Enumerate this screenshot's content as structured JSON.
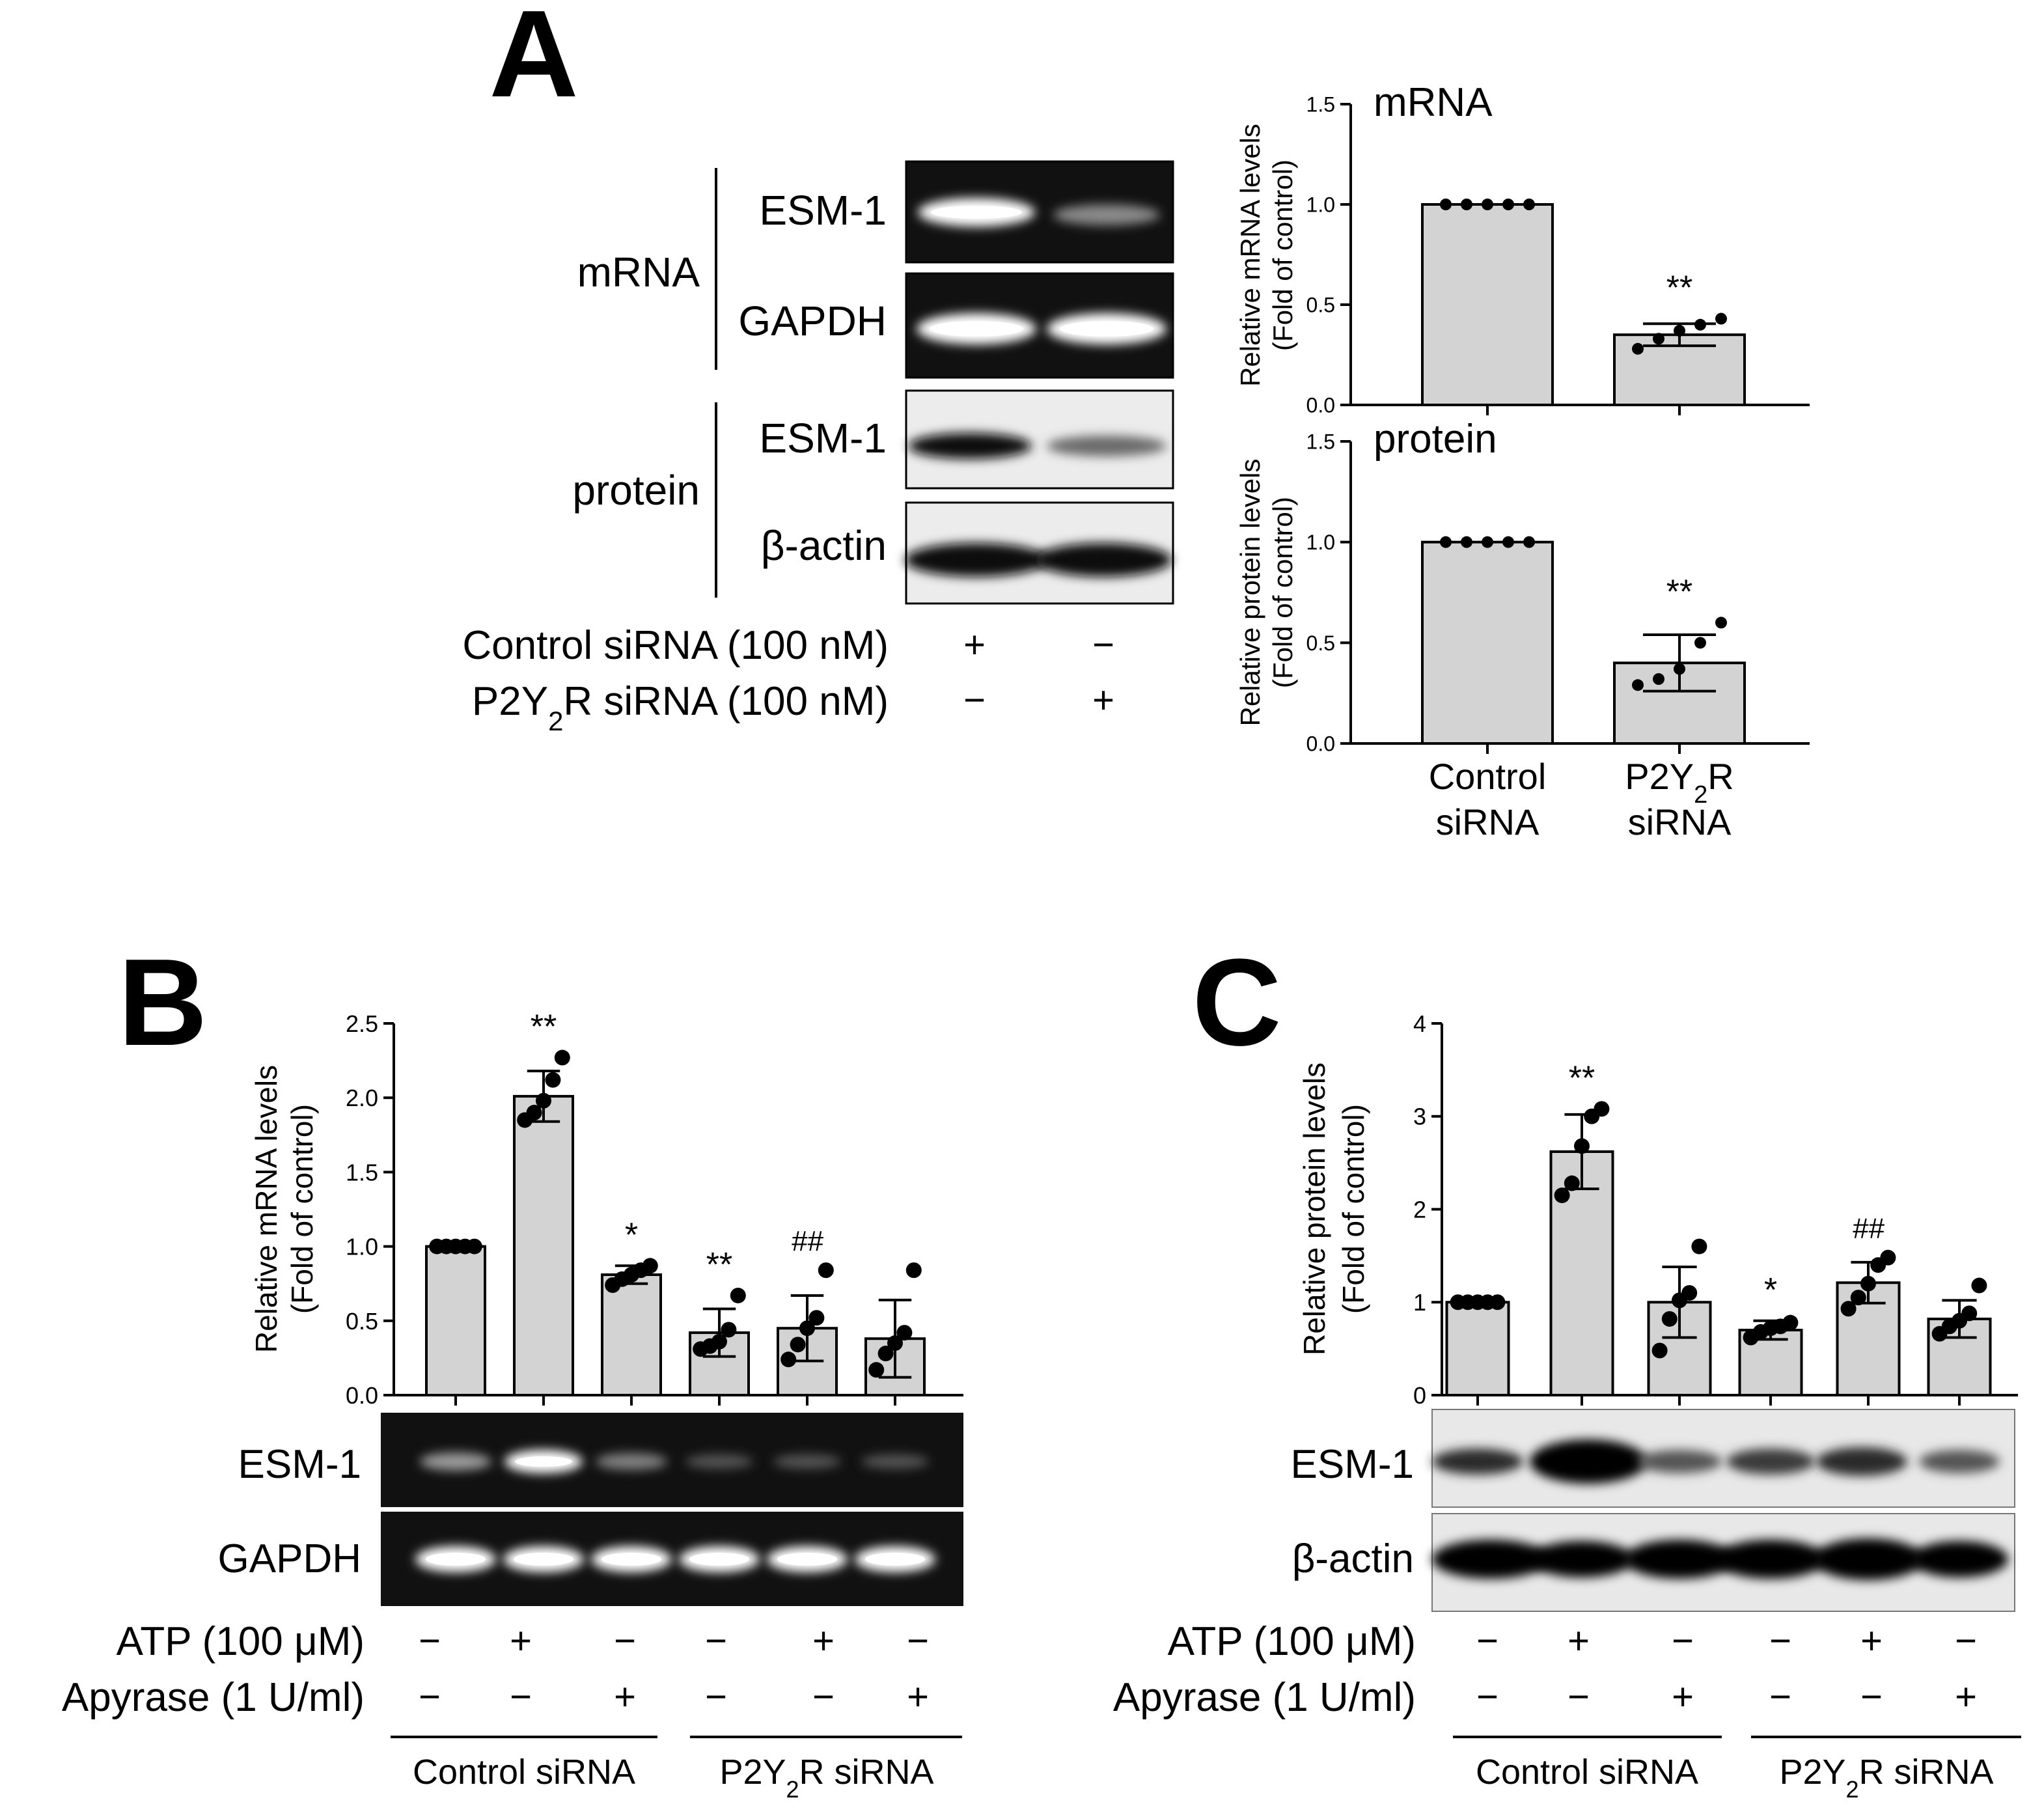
{
  "panels": [
    {
      "letter": "A"
    },
    {
      "letter": "B"
    },
    {
      "letter": "C"
    }
  ],
  "panel_a": {
    "group_labels": [
      "mRNA",
      "protein"
    ],
    "blot_labels": [
      "ESM-1",
      "GAPDH",
      "ESM-1",
      "β-actin"
    ],
    "treatments": [
      {
        "label": "Control siRNA (100 nM)",
        "marks": [
          "+",
          "−"
        ]
      },
      {
        "label_parts": [
          "P2Y",
          "2",
          "R siRNA  (100 nM)"
        ],
        "marks": [
          "−",
          "+"
        ]
      }
    ]
  },
  "panel_b": {
    "blot_labels": [
      "ESM-1",
      "GAPDH"
    ],
    "treatments": [
      {
        "label": "ATP (100 μM)",
        "marks": [
          "−",
          "+",
          "−",
          "−",
          "+",
          "−"
        ]
      },
      {
        "label": "Apyrase (1 U/ml)",
        "marks": [
          "−",
          "−",
          "+",
          "−",
          "−",
          "+"
        ]
      }
    ],
    "groups": [
      {
        "label": "Control siRNA"
      },
      {
        "label_parts": [
          "P2Y",
          "2",
          "R siRNA"
        ]
      }
    ]
  },
  "panel_c": {
    "blot_labels": [
      "ESM-1",
      "β-actin"
    ],
    "treatments": [
      {
        "label": "ATP (100 μM)",
        "marks": [
          "−",
          "+",
          "−",
          "−",
          "+",
          "−"
        ]
      },
      {
        "label": "Apyrase (1 U/ml)",
        "marks": [
          "−",
          "−",
          "+",
          "−",
          "−",
          "+"
        ]
      }
    ],
    "groups": [
      {
        "label": "Control siRNA"
      },
      {
        "label_parts": [
          "P2Y",
          "2",
          "R siRNA"
        ]
      }
    ]
  },
  "chart_data": [
    {
      "type": "bar",
      "panel": "A",
      "title": "mRNA",
      "ylabel_lines": [
        "Relative mRNA levels",
        "(Fold of control)"
      ],
      "ylim": [
        0,
        1.5
      ],
      "yticks": [
        "0.0",
        "0.5",
        "1.0",
        "1.5"
      ],
      "values": [
        1.0,
        0.35
      ],
      "errors": [
        0,
        0.055
      ],
      "points": [
        [
          1.0,
          1.0,
          1.0,
          1.0,
          1.0
        ],
        [
          0.28,
          0.33,
          0.37,
          0.4,
          0.43
        ]
      ],
      "annotations": [
        "",
        "**"
      ],
      "colors": {
        "bar": "#d3d3d3"
      }
    },
    {
      "type": "bar",
      "panel": "A",
      "title": "protein",
      "ylabel_lines": [
        "Relative protein levels",
        "(Fold of control)"
      ],
      "ylim": [
        0,
        1.5
      ],
      "yticks": [
        "0.0",
        "0.5",
        "1.0",
        "1.5"
      ],
      "values": [
        1.0,
        0.4
      ],
      "errors": [
        0,
        0.14
      ],
      "points": [
        [
          1.0,
          1.0,
          1.0,
          1.0,
          1.0
        ],
        [
          0.29,
          0.32,
          0.37,
          0.5,
          0.6
        ]
      ],
      "annotations": [
        "",
        "**"
      ],
      "category_lines": [
        [
          "Control",
          "siRNA"
        ],
        [
          "P2Y|2|R",
          "siRNA"
        ]
      ],
      "colors": {
        "bar": "#d3d3d3"
      }
    },
    {
      "type": "bar",
      "panel": "B",
      "ylabel_lines": [
        "Relative mRNA levels",
        "(Fold of control)"
      ],
      "ylim": [
        0,
        2.5
      ],
      "yticks": [
        "0.0",
        "0.5",
        "1.0",
        "1.5",
        "2.0",
        "2.5"
      ],
      "values": [
        1.0,
        2.01,
        0.81,
        0.42,
        0.45,
        0.38
      ],
      "errors": [
        0,
        0.17,
        0.06,
        0.16,
        0.22,
        0.26
      ],
      "points": [
        [
          1.0,
          1.0,
          1.0,
          1.0,
          1.0
        ],
        [
          1.85,
          1.9,
          1.98,
          2.12,
          2.27
        ],
        [
          0.74,
          0.78,
          0.81,
          0.84,
          0.87
        ],
        [
          0.31,
          0.33,
          0.36,
          0.44,
          0.67
        ],
        [
          0.24,
          0.34,
          0.45,
          0.52,
          0.84
        ],
        [
          0.17,
          0.28,
          0.35,
          0.42,
          0.84
        ]
      ],
      "annotations": [
        "",
        "**",
        "*",
        "**",
        "##",
        ""
      ],
      "colors": {
        "bar": "#d3d3d3"
      }
    },
    {
      "type": "bar",
      "panel": "C",
      "ylabel_lines": [
        "Relative protein levels",
        "(Fold of control)"
      ],
      "ylim": [
        0,
        4
      ],
      "yticks": [
        "0",
        "1",
        "2",
        "3",
        "4"
      ],
      "values": [
        1.0,
        2.62,
        1.0,
        0.7,
        1.21,
        0.82
      ],
      "errors": [
        0,
        0.4,
        0.38,
        0.1,
        0.22,
        0.2
      ],
      "points": [
        [
          1.0,
          1.0,
          1.0,
          1.0,
          1.0
        ],
        [
          2.15,
          2.28,
          2.68,
          3.0,
          3.08
        ],
        [
          0.48,
          0.82,
          1.02,
          1.1,
          1.6
        ],
        [
          0.62,
          0.68,
          0.72,
          0.74,
          0.78
        ],
        [
          0.93,
          1.05,
          1.2,
          1.4,
          1.48
        ],
        [
          0.66,
          0.74,
          0.8,
          0.88,
          1.18
        ]
      ],
      "annotations": [
        "",
        "**",
        "",
        "*",
        "##",
        ""
      ],
      "colors": {
        "bar": "#d3d3d3"
      }
    }
  ]
}
